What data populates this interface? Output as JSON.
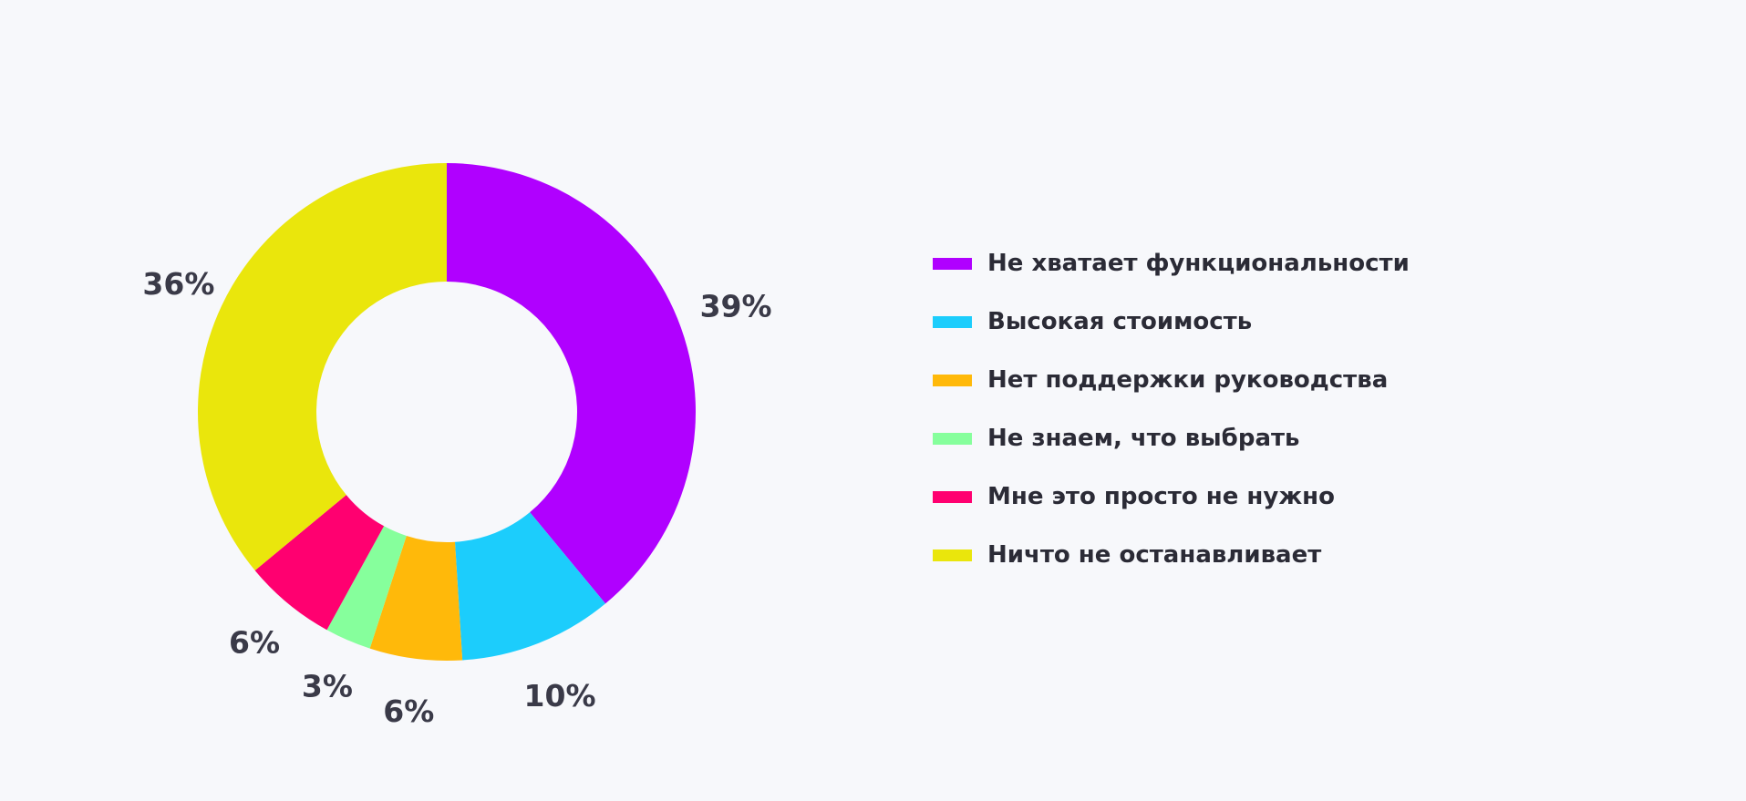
{
  "chart_data": {
    "type": "pie",
    "variant": "donut",
    "categories": [
      "Не хватает функциональности",
      "Высокая стоимость",
      "Нет поддержки руководства",
      "Не знаем, что выбрать",
      "Мне это просто не нужно",
      "Ничто не останавливает"
    ],
    "values": [
      39,
      10,
      6,
      3,
      6,
      36
    ],
    "labels": [
      "39%",
      "10%",
      "6%",
      "3%",
      "6%",
      "36%"
    ],
    "colors": [
      "#b000ff",
      "#1ccdfc",
      "#ffb90a",
      "#86ff9c",
      "#ff0070",
      "#eae60c"
    ],
    "unit": "%",
    "legend_position": "right",
    "start": "top",
    "direction": "clockwise"
  }
}
